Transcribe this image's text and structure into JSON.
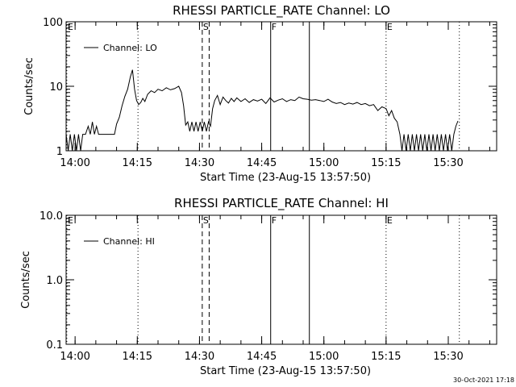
{
  "chart_data": [
    {
      "type": "line",
      "title": "RHESSI PARTICLE_RATE Channel: LO",
      "xlabel": "Start Time (23-Aug-15 13:57:50)",
      "ylabel": "Counts/sec",
      "yscale": "log",
      "ylim": [
        1,
        100
      ],
      "xlim": [
        "13:57:50",
        "15:41:40"
      ],
      "x_tick_labels": [
        "14:00",
        "14:15",
        "14:30",
        "14:45",
        "15:00",
        "15:15",
        "15:30"
      ],
      "y_tick_labels": [
        "1",
        "10",
        "100"
      ],
      "y_tick_values": [
        1,
        10,
        100
      ],
      "legend": {
        "position": "top-left",
        "entries": [
          "Channel: LO"
        ]
      },
      "grid": false,
      "series": [
        {
          "name": "Channel: LO",
          "points": [
            [
              "13:57:50",
              1.8
            ],
            [
              "13:58:20",
              1.0
            ],
            [
              "13:58:50",
              1.8
            ],
            [
              "13:59:20",
              1.0
            ],
            [
              "13:59:50",
              1.8
            ],
            [
              "14:00:20",
              1.0
            ],
            [
              "14:00:50",
              1.8
            ],
            [
              "14:01:20",
              1.0
            ],
            [
              "14:01:50",
              1.8
            ],
            [
              "14:02:30",
              1.8
            ],
            [
              "14:03:10",
              2.4
            ],
            [
              "14:03:40",
              1.8
            ],
            [
              "14:04:10",
              2.8
            ],
            [
              "14:04:40",
              1.8
            ],
            [
              "14:05:10",
              2.4
            ],
            [
              "14:05:40",
              1.8
            ],
            [
              "14:06:40",
              1.8
            ],
            [
              "14:08:00",
              1.8
            ],
            [
              "14:09:30",
              1.8
            ],
            [
              "14:10:00",
              2.6
            ],
            [
              "14:10:40",
              3.3
            ],
            [
              "14:11:20",
              5.0
            ],
            [
              "14:12:00",
              7.0
            ],
            [
              "14:12:40",
              9.0
            ],
            [
              "14:13:20",
              14.0
            ],
            [
              "14:13:50",
              18.0
            ],
            [
              "14:14:20",
              9.0
            ],
            [
              "14:14:50",
              6.0
            ],
            [
              "14:15:20",
              5.2
            ],
            [
              "14:15:50",
              5.6
            ],
            [
              "14:16:20",
              6.5
            ],
            [
              "14:16:50",
              5.8
            ],
            [
              "14:17:30",
              7.5
            ],
            [
              "14:18:20",
              8.5
            ],
            [
              "14:19:10",
              8.0
            ],
            [
              "14:20:00",
              9.0
            ],
            [
              "14:21:00",
              8.5
            ],
            [
              "14:22:00",
              9.5
            ],
            [
              "14:23:00",
              8.8
            ],
            [
              "14:24:00",
              9.2
            ],
            [
              "14:25:00",
              10.0
            ],
            [
              "14:25:40",
              8.0
            ],
            [
              "14:26:10",
              5.0
            ],
            [
              "14:26:40",
              2.5
            ],
            [
              "14:27:10",
              2.8
            ],
            [
              "14:27:40",
              2.0
            ],
            [
              "14:28:10",
              2.8
            ],
            [
              "14:28:40",
              2.0
            ],
            [
              "14:29:10",
              2.8
            ],
            [
              "14:29:40",
              2.0
            ],
            [
              "14:30:10",
              2.8
            ],
            [
              "14:30:40",
              2.0
            ],
            [
              "14:31:10",
              2.8
            ],
            [
              "14:31:40",
              2.0
            ],
            [
              "14:32:10",
              2.8
            ],
            [
              "14:32:40",
              2.4
            ],
            [
              "14:33:10",
              4.5
            ],
            [
              "14:33:40",
              6.0
            ],
            [
              "14:34:20",
              7.2
            ],
            [
              "14:35:00",
              5.2
            ],
            [
              "14:35:40",
              6.8
            ],
            [
              "14:36:20",
              6.0
            ],
            [
              "14:37:00",
              5.5
            ],
            [
              "14:37:40",
              6.5
            ],
            [
              "14:38:20",
              5.8
            ],
            [
              "14:39:00",
              6.6
            ],
            [
              "14:40:00",
              5.8
            ],
            [
              "14:41:00",
              6.4
            ],
            [
              "14:42:00",
              5.6
            ],
            [
              "14:43:00",
              6.2
            ],
            [
              "14:44:00",
              5.9
            ],
            [
              "14:45:00",
              6.3
            ],
            [
              "14:46:00",
              5.4
            ],
            [
              "14:47:00",
              6.6
            ],
            [
              "14:48:00",
              5.7
            ],
            [
              "14:49:00",
              6.1
            ],
            [
              "14:50:00",
              6.4
            ],
            [
              "14:51:00",
              5.8
            ],
            [
              "14:52:00",
              6.2
            ],
            [
              "14:53:00",
              6.0
            ],
            [
              "14:54:00",
              6.8
            ],
            [
              "14:55:00",
              6.4
            ],
            [
              "14:56:00",
              6.3
            ],
            [
              "14:57:00",
              6.1
            ],
            [
              "14:58:00",
              6.2
            ],
            [
              "14:59:00",
              6.0
            ],
            [
              "15:00:00",
              5.8
            ],
            [
              "15:01:00",
              6.3
            ],
            [
              "15:02:00",
              5.7
            ],
            [
              "15:03:00",
              5.4
            ],
            [
              "15:04:00",
              5.6
            ],
            [
              "15:05:00",
              5.2
            ],
            [
              "15:06:00",
              5.5
            ],
            [
              "15:07:00",
              5.3
            ],
            [
              "15:08:00",
              5.6
            ],
            [
              "15:09:00",
              5.2
            ],
            [
              "15:10:00",
              5.4
            ],
            [
              "15:11:00",
              5.0
            ],
            [
              "15:12:00",
              5.2
            ],
            [
              "15:13:00",
              4.2
            ],
            [
              "15:14:00",
              4.8
            ],
            [
              "15:15:00",
              4.5
            ],
            [
              "15:15:40",
              3.5
            ],
            [
              "15:16:20",
              4.2
            ],
            [
              "15:17:00",
              3.2
            ],
            [
              "15:17:40",
              2.8
            ],
            [
              "15:18:20",
              1.8
            ],
            [
              "15:18:50",
              1.0
            ],
            [
              "15:19:20",
              1.8
            ],
            [
              "15:19:50",
              1.0
            ],
            [
              "15:20:20",
              1.8
            ],
            [
              "15:20:50",
              1.0
            ],
            [
              "15:21:20",
              1.8
            ],
            [
              "15:21:50",
              1.0
            ],
            [
              "15:22:20",
              1.8
            ],
            [
              "15:22:50",
              1.0
            ],
            [
              "15:23:20",
              1.8
            ],
            [
              "15:23:50",
              1.0
            ],
            [
              "15:24:20",
              1.8
            ],
            [
              "15:24:50",
              1.0
            ],
            [
              "15:25:20",
              1.8
            ],
            [
              "15:25:50",
              1.0
            ],
            [
              "15:26:20",
              1.8
            ],
            [
              "15:26:50",
              1.0
            ],
            [
              "15:27:20",
              1.8
            ],
            [
              "15:27:50",
              1.0
            ],
            [
              "15:28:20",
              1.8
            ],
            [
              "15:28:50",
              1.0
            ],
            [
              "15:29:20",
              1.8
            ],
            [
              "15:29:50",
              1.0
            ],
            [
              "15:30:20",
              1.8
            ],
            [
              "15:30:50",
              1.0
            ],
            [
              "15:31:20",
              1.8
            ],
            [
              "15:31:50",
              2.4
            ],
            [
              "15:32:20",
              2.9
            ]
          ]
        }
      ]
    },
    {
      "type": "line",
      "title": "RHESSI PARTICLE_RATE Channel: HI",
      "xlabel": "Start Time (23-Aug-15 13:57:50)",
      "ylabel": "Counts/sec",
      "yscale": "log",
      "ylim": [
        0.1,
        10.0
      ],
      "xlim": [
        "13:57:50",
        "15:41:40"
      ],
      "x_tick_labels": [
        "14:00",
        "14:15",
        "14:30",
        "14:45",
        "15:00",
        "15:15",
        "15:30"
      ],
      "y_tick_labels": [
        "0.1",
        "1.0",
        "10.0"
      ],
      "y_tick_values": [
        0.1,
        1.0,
        10.0
      ],
      "legend": {
        "position": "top-left",
        "entries": [
          "Channel: HI"
        ]
      },
      "grid": false,
      "series": [
        {
          "name": "Channel: HI",
          "points": []
        }
      ]
    }
  ],
  "markers": [
    {
      "label": "E",
      "time": "13:58:00",
      "style": "dotted"
    },
    {
      "label": "",
      "time": "14:15:10",
      "style": "dotted"
    },
    {
      "label": "S",
      "time": "14:30:40",
      "style": "dashed"
    },
    {
      "label": "",
      "time": "14:32:20",
      "style": "dashed"
    },
    {
      "label": "F",
      "time": "14:47:10",
      "style": "solid"
    },
    {
      "label": "",
      "time": "14:56:30",
      "style": "solid"
    },
    {
      "label": "E",
      "time": "15:15:00",
      "style": "dotted"
    },
    {
      "label": "",
      "time": "15:32:40",
      "style": "dotted"
    }
  ],
  "timestamp": "30-Oct-2021 17:18"
}
